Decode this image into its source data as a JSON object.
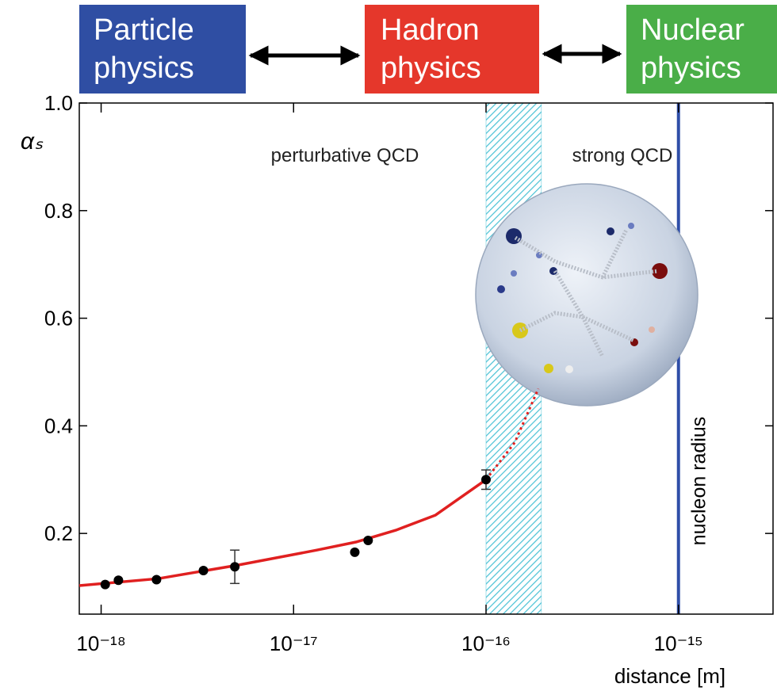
{
  "header": {
    "boxes": [
      {
        "label": "Particle physics",
        "color": "#2f4ea3"
      },
      {
        "label": "Hadron physics",
        "color": "#e5372b"
      },
      {
        "label": "Nuclear physics",
        "color": "#4aae48"
      }
    ]
  },
  "chart_data": {
    "type": "scatter",
    "x_label": "distance [m]",
    "y_label": "αₛ",
    "xlog": true,
    "xlim": [
      7.7e-19,
      3.1e-15
    ],
    "ylim": [
      0.05,
      1.0
    ],
    "xticks": [
      {
        "value": 1e-18,
        "label": "10⁻¹⁸"
      },
      {
        "value": 1e-17,
        "label": "10⁻¹⁷"
      },
      {
        "value": 1e-16,
        "label": "10⁻¹⁶"
      },
      {
        "value": 1e-15,
        "label": "10⁻¹⁵"
      }
    ],
    "yticks": [
      0.2,
      0.4,
      0.6,
      0.8,
      {
        "value": 1,
        "label": "1.0"
      }
    ],
    "points": {
      "color": "#000000",
      "x": [
        1.05e-18,
        1.23e-18,
        1.94e-18,
        3.4e-18,
        4.95e-18,
        2.08e-17,
        2.44e-17,
        1e-16
      ],
      "values": [
        0.105,
        0.113,
        0.114,
        0.131,
        0.138,
        0.165,
        0.187,
        0.3
      ],
      "errors": [
        null,
        null,
        null,
        null,
        0.031,
        null,
        null,
        0.018
      ]
    },
    "curve": {
      "color": "#e02020",
      "x": [
        7.7e-19,
        1.98e-18,
        5.1e-18,
        1.32e-17,
        2.11e-17,
        3.4e-17,
        5.46e-17,
        1e-16
      ],
      "values": [
        0.103,
        0.116,
        0.141,
        0.169,
        0.184,
        0.206,
        0.234,
        0.3
      ]
    },
    "extrapolation": {
      "color": "#e02020",
      "x": [
        1e-16,
        1.41e-16,
        1.87e-16
      ],
      "values": [
        0.3,
        0.369,
        0.469
      ]
    },
    "band": {
      "xrange": [
        1e-16,
        1.94e-16
      ],
      "color": "#4fc3d6"
    },
    "nucleon_radius": {
      "x": 1e-15,
      "label": "nucleon radius",
      "color": "#2f4ea8"
    },
    "annotations": [
      {
        "text": "perturbative QCD"
      },
      {
        "text": "strong QCD"
      }
    ]
  }
}
